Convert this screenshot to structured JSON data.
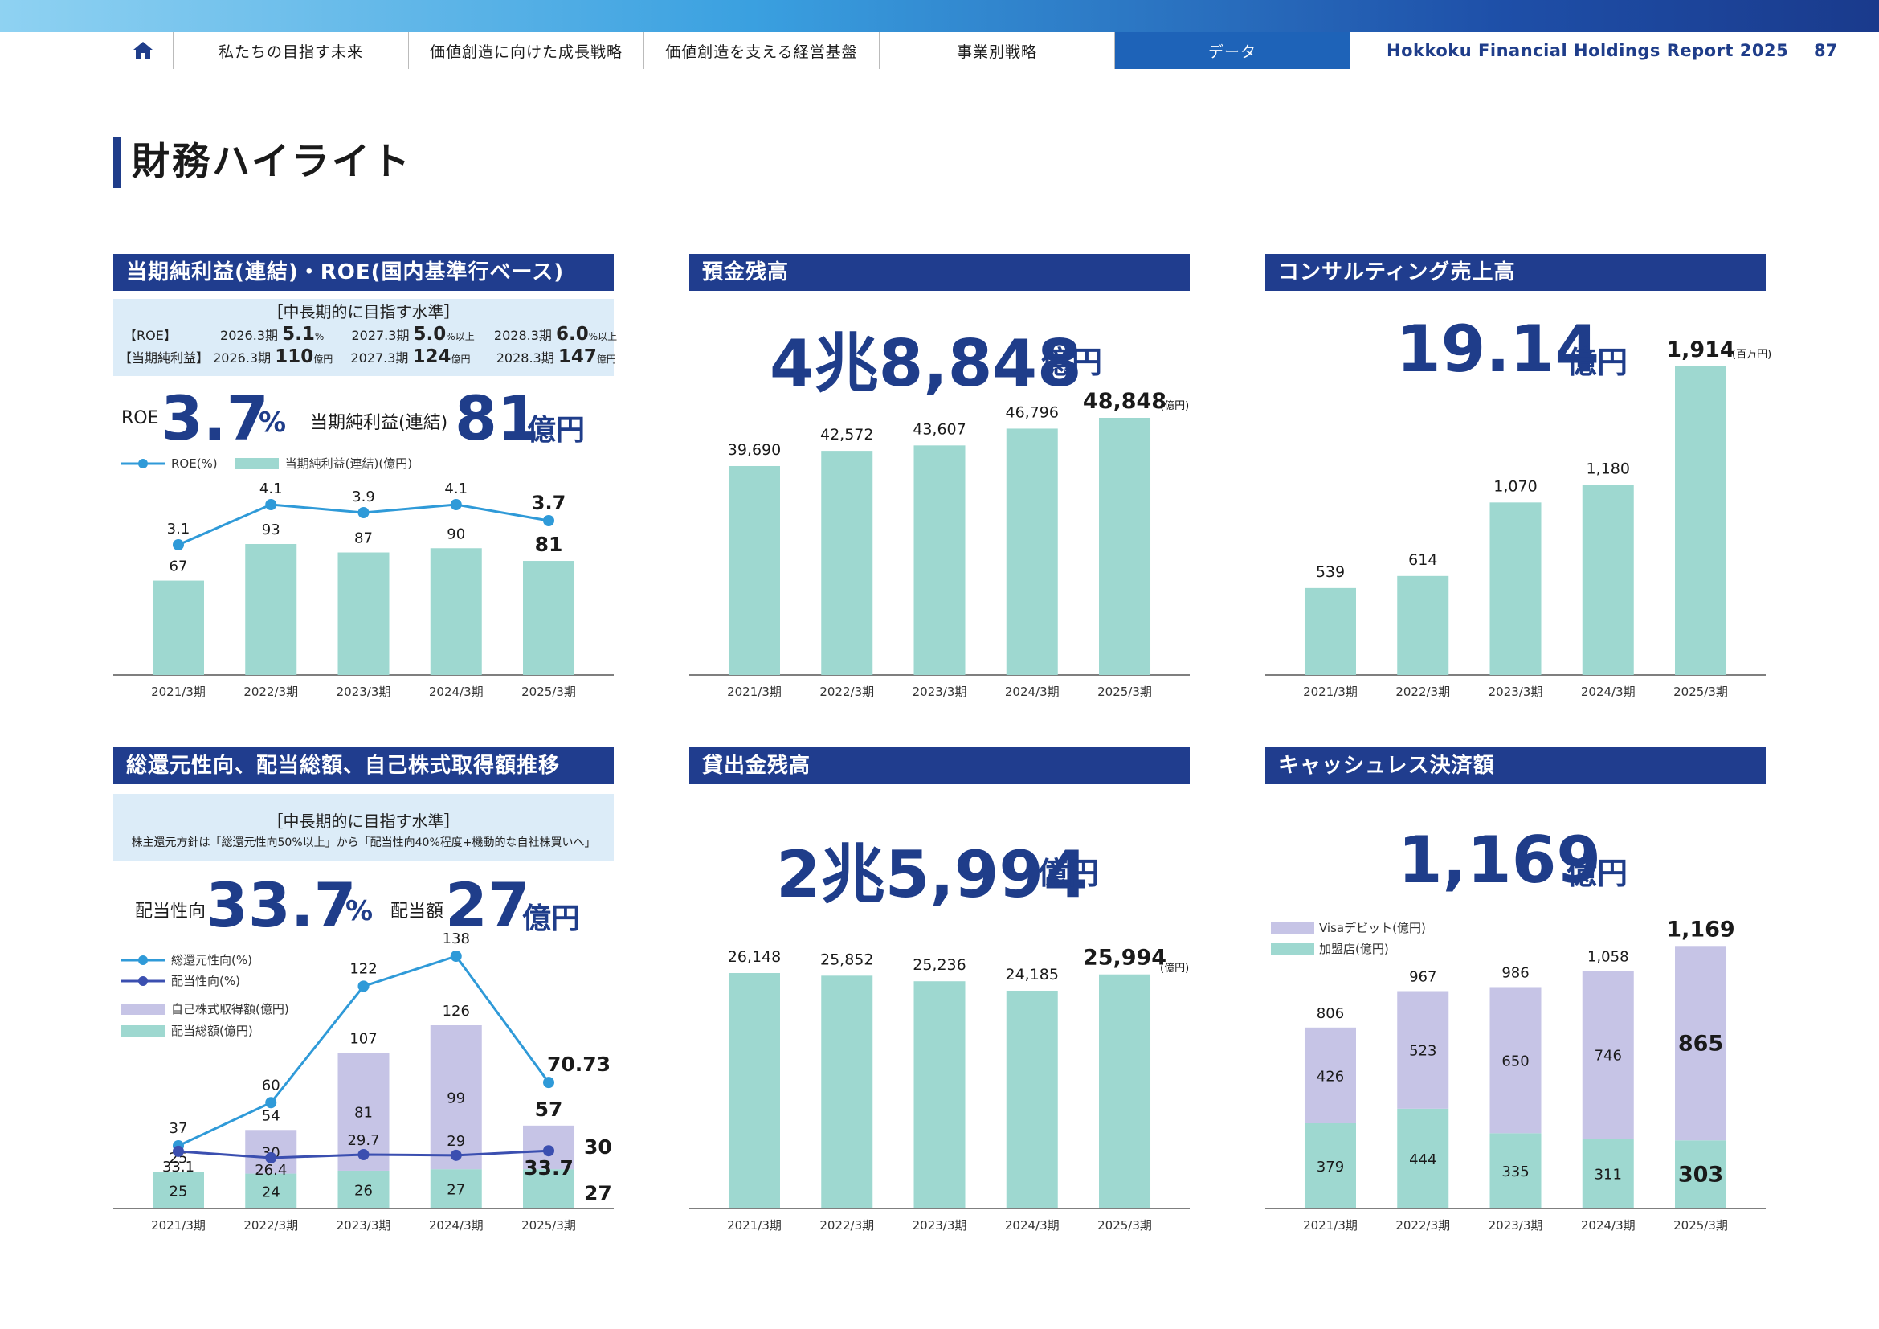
{
  "nav": {
    "tabs": [
      "私たちの目指す未来",
      "価値創造に向けた成長戦略",
      "価値創造を支える経営基盤",
      "事業別戦略",
      "データ"
    ],
    "report_title": "Hokkoku Financial Holdings Report 2025",
    "page_number": "87"
  },
  "page_title": "財務ハイライト",
  "categories": [
    "2021/3期",
    "2022/3期",
    "2023/3期",
    "2024/3期",
    "2025/3期"
  ],
  "colors": {
    "navy": "#203d8e",
    "teal": "#9ed8d0",
    "lavender": "#c6c4e6",
    "sky": "#2f9ad8",
    "blue": "#3b4fb0"
  },
  "profit": {
    "title": "当期純利益(連結)・ROE(国内基準行ベース)",
    "goal_header": "［中長期的に目指す水準］",
    "goal_row1_label": "【ROE】",
    "goal_row1": [
      {
        "period": "2026.3期",
        "value": "5.1",
        "unit": "%",
        "suffix": ""
      },
      {
        "period": "2027.3期",
        "value": "5.0",
        "unit": "%",
        "suffix": "以上"
      },
      {
        "period": "2028.3期",
        "value": "6.0",
        "unit": "%",
        "suffix": "以上"
      }
    ],
    "goal_row2_label": "【当期純利益】",
    "goal_row2": [
      {
        "period": "2026.3期",
        "value": "110",
        "unit": "億円",
        "suffix": ""
      },
      {
        "period": "2027.3期",
        "value": "124",
        "unit": "億円",
        "suffix": ""
      },
      {
        "period": "2028.3期",
        "value": "147",
        "unit": "億円",
        "suffix": ""
      }
    ],
    "roe_prefix": "ROE",
    "roe_value": "3.7",
    "roe_unit": "%",
    "profit_prefix": "当期純利益(連結)",
    "profit_value": "81",
    "profit_unit": "億円",
    "legend_line": "ROE(%)",
    "legend_bar": "当期純利益(連結)(億円)"
  },
  "deposits": {
    "title": "預金残高",
    "big_value": "4兆8,848",
    "big_unit": "億円",
    "unit_note": "(億円)"
  },
  "consulting": {
    "title": "コンサルティング売上高",
    "big_value": "19.14",
    "big_unit": "億円",
    "unit_note": "(百万円)"
  },
  "returns": {
    "title": "総還元性向、配当総額、自己株式取得額推移",
    "goal_header": "［中長期的に目指す水準］",
    "goal_text": "株主還元方針は「総還元性向50%以上」から「配当性向40%程度+機動的な自社株買いへ」",
    "payout_prefix": "配当性向",
    "payout_value": "33.7",
    "payout_unit": "%",
    "dividend_prefix": "配当額",
    "dividend_value": "27",
    "dividend_unit": "億円",
    "legend": [
      "総還元性向(%)",
      "配当性向(%)",
      "自己株式取得額(億円)",
      "配当総額(億円)"
    ]
  },
  "loans": {
    "title": "貸出金残高",
    "big_value": "2兆5,994",
    "big_unit": "億円",
    "unit_note": "(億円)"
  },
  "cashless": {
    "title": "キャッシュレス決済額",
    "big_value": "1,169",
    "big_unit": "億円",
    "legend": [
      "Visaデビット(億円)",
      "加盟店(億円)"
    ]
  },
  "chart_data": [
    {
      "type": "bar",
      "title": "当期純利益(連結)・ROE(国内基準行ベース)",
      "categories": [
        "2021/3期",
        "2022/3期",
        "2023/3期",
        "2024/3期",
        "2025/3期"
      ],
      "series": [
        {
          "name": "当期純利益(連結)(億円)",
          "type": "bar",
          "values": [
            67,
            93,
            87,
            90,
            81
          ]
        },
        {
          "name": "ROE(%)",
          "type": "line",
          "values": [
            3.1,
            4.1,
            3.9,
            4.1,
            3.7
          ]
        }
      ]
    },
    {
      "type": "bar",
      "title": "預金残高",
      "categories": [
        "2021/3期",
        "2022/3期",
        "2023/3期",
        "2024/3期",
        "2025/3期"
      ],
      "values": [
        39690,
        42572,
        43607,
        46796,
        48848
      ],
      "ylabel": "(億円)"
    },
    {
      "type": "bar",
      "title": "コンサルティング売上高",
      "categories": [
        "2021/3期",
        "2022/3期",
        "2023/3期",
        "2024/3期",
        "2025/3期"
      ],
      "values": [
        539,
        614,
        1070,
        1180,
        1914
      ],
      "ylabel": "(百万円)"
    },
    {
      "type": "bar",
      "title": "総還元性向、配当総額、自己株式取得額推移",
      "categories": [
        "2021/3期",
        "2022/3期",
        "2023/3期",
        "2024/3期",
        "2025/3期"
      ],
      "series": [
        {
          "name": "配当総額(億円)",
          "type": "bar",
          "values": [
            25,
            24,
            26,
            27,
            27
          ]
        },
        {
          "name": "自己株式取得額(億円)",
          "type": "bar",
          "values": [
            0,
            30,
            81,
            99,
            30
          ]
        },
        {
          "name": "総還元性向(%)",
          "type": "line",
          "values": [
            37,
            60,
            122,
            138,
            70.73
          ]
        },
        {
          "name": "配当性向(%)",
          "type": "line",
          "values": [
            33.1,
            26.4,
            29.7,
            29.0,
            33.7
          ]
        }
      ],
      "totals": [
        25,
        54,
        107,
        126,
        57
      ]
    },
    {
      "type": "bar",
      "title": "貸出金残高",
      "categories": [
        "2021/3期",
        "2022/3期",
        "2023/3期",
        "2024/3期",
        "2025/3期"
      ],
      "values": [
        26148,
        25852,
        25236,
        24185,
        25994
      ],
      "ylabel": "(億円)"
    },
    {
      "type": "bar",
      "title": "キャッシュレス決済額",
      "categories": [
        "2021/3期",
        "2022/3期",
        "2023/3期",
        "2024/3期",
        "2025/3期"
      ],
      "series": [
        {
          "name": "加盟店(億円)",
          "values": [
            379,
            444,
            335,
            311,
            303
          ]
        },
        {
          "name": "Visaデビット(億円)",
          "values": [
            426,
            523,
            650,
            746,
            865
          ]
        }
      ],
      "totals": [
        806,
        967,
        986,
        1058,
        1169
      ]
    }
  ]
}
